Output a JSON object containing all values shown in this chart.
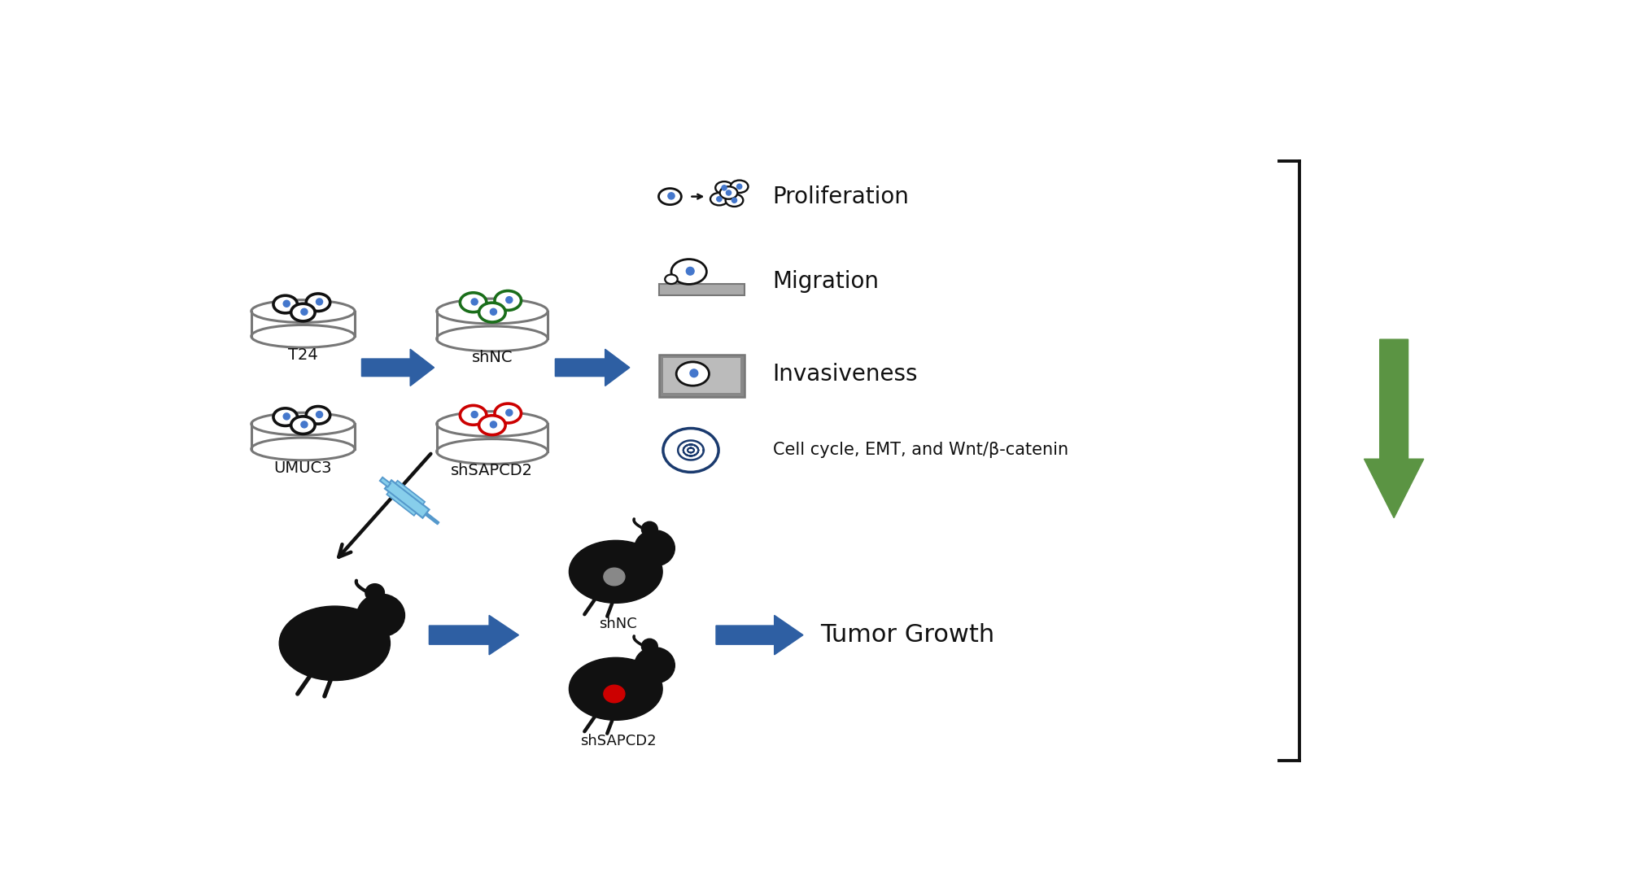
{
  "bg_color": "#ffffff",
  "text_color": "#111111",
  "blue_arrow_color": "#2E5FA3",
  "green_arrow_color": "#5B9443",
  "bracket_color": "#111111",
  "gray_color": "#777777",
  "green_ring_color": "#1a6e1a",
  "red_ring_color": "#cc0000",
  "blue_dot_color": "#4477cc",
  "mouse_color": "#111111",
  "tumor_gray": "#888888",
  "tumor_red": "#cc0000",
  "syringe_blue": "#5599cc",
  "syringe_fill": "#87ceeb",
  "dark_blue_icon": "#1a3a6e",
  "mem_gray": "#aaaaaa",
  "mem_dark": "#777777",
  "inv_outer": "#888888",
  "inv_inner": "#bbbbbb",
  "labels_T24": "T24",
  "labels_UMUC3": "UMUC3",
  "labels_shNC_dish": "shNC",
  "labels_shSAPCD2_dish": "shSAPCD2",
  "labels_proliferation": "Proliferation",
  "labels_migration": "Migration",
  "labels_invasiveness": "Invasiveness",
  "labels_cell_cycle": "Cell cycle, EMT, and Wnt/β-catenin",
  "labels_tumor_growth": "Tumor Growth",
  "labels_shNC_mouse": "shNC",
  "labels_shSAPCD2_mouse": "shSAPCD2",
  "figsize": [
    20.18,
    10.83
  ],
  "dpi": 100
}
